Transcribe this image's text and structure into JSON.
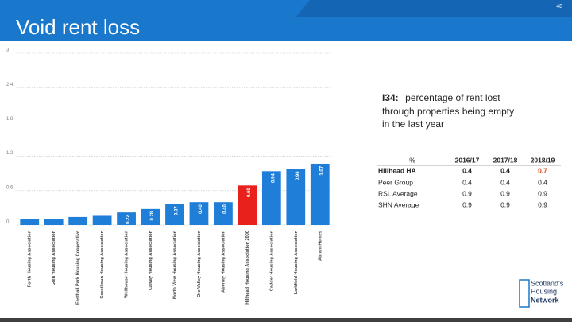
{
  "header": {
    "title": "Void rent loss",
    "page": "48"
  },
  "chart_data": {
    "type": "bar",
    "categories": [
      "Forth Housing Association",
      "Glen Housing Association",
      "Easthall Park Housing Cooperative",
      "Cassiltoun Housing Association",
      "Wellhouse Housing Association",
      "Calvay Housing Association",
      "North View Housing Association",
      "Ore Valley Housing Association",
      "Abertay Housing Association",
      "Hillhead Housing Association 2000",
      "Cadder Housing Association",
      "Larkfield Housing Association",
      "Abram Homes"
    ],
    "values": [
      0.1,
      0.11,
      0.14,
      0.16,
      0.22,
      0.28,
      0.37,
      0.4,
      0.4,
      0.69,
      0.94,
      0.98,
      1.07
    ],
    "value_labels": [
      null,
      null,
      null,
      null,
      "0.22",
      "0.28",
      "0.37",
      "0.40",
      "0.40",
      "0.69",
      "0.94",
      "0.98",
      "1.07"
    ],
    "colors": [
      "#1f7fd8",
      "#1f7fd8",
      "#1f7fd8",
      "#1f7fd8",
      "#1f7fd8",
      "#1f7fd8",
      "#1f7fd8",
      "#1f7fd8",
      "#1f7fd8",
      "#e8211c",
      "#1f7fd8",
      "#1f7fd8",
      "#1f7fd8"
    ],
    "ylim": [
      0,
      3
    ],
    "yticks": [
      0,
      0.6,
      1.2,
      1.8,
      2.4,
      3
    ],
    "grid": true
  },
  "note": {
    "code": "I34:",
    "lines": [
      "percentage of rent lost",
      "through properties being empty",
      "in the last year"
    ]
  },
  "table": {
    "header": [
      "%",
      "2016/17",
      "2017/18",
      "2018/19"
    ],
    "rows": [
      [
        "Hillhead HA",
        0.4,
        0.4,
        0.7
      ],
      [
        "Peer Group",
        0.4,
        0.4,
        0.4
      ],
      [
        "RSL Average",
        0.9,
        0.9,
        0.9
      ],
      [
        "SHN Average",
        0.9,
        0.9,
        0.9
      ]
    ]
  },
  "logo": {
    "lines": [
      "Scotland's",
      "Housing",
      "Network"
    ]
  }
}
